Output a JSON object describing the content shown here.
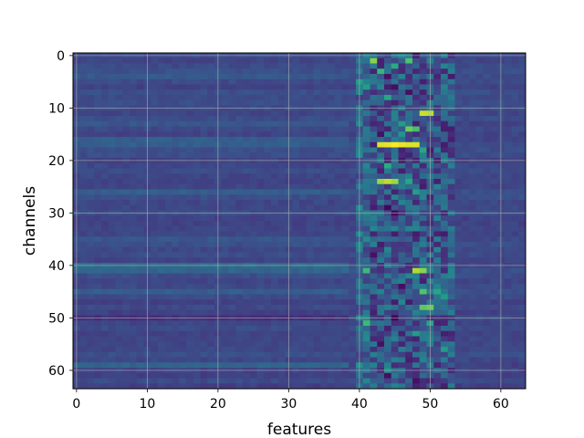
{
  "chart_data": {
    "type": "heatmap",
    "title": "",
    "xlabel": "features",
    "ylabel": "channels",
    "colormap": "viridis",
    "grid": true,
    "y_axis_inverted": true,
    "xlim": [
      -0.5,
      63.5
    ],
    "ylim": [
      63.5,
      -0.5
    ],
    "x_ticks": [
      0,
      10,
      20,
      30,
      40,
      50,
      60
    ],
    "y_ticks": [
      0,
      10,
      20,
      30,
      40,
      50,
      60
    ],
    "shape": {
      "channels": 64,
      "features": 64
    },
    "value_range": [
      0,
      1
    ],
    "background_level": 0.22,
    "active_feature_band": [
      40,
      53
    ],
    "background_bands": [
      {
        "channel": 4,
        "features": [
          0,
          38
        ],
        "value": 0.28
      },
      {
        "channel": 13,
        "features": [
          0,
          38
        ],
        "value": 0.27
      },
      {
        "channel": 16,
        "features": [
          0,
          38
        ],
        "value": 0.3
      },
      {
        "channel": 17,
        "features": [
          0,
          38
        ],
        "value": 0.3
      },
      {
        "channel": 26,
        "features": [
          0,
          38
        ],
        "value": 0.3
      },
      {
        "channel": 35,
        "features": [
          0,
          38
        ],
        "value": 0.27
      },
      {
        "channel": 40,
        "features": [
          0,
          38
        ],
        "value": 0.35
      },
      {
        "channel": 41,
        "features": [
          0,
          38
        ],
        "value": 0.33
      },
      {
        "channel": 45,
        "features": [
          0,
          38
        ],
        "value": 0.3
      },
      {
        "channel": 50,
        "features": [
          0,
          38
        ],
        "value": 0.14
      },
      {
        "channel": 59,
        "features": [
          0,
          38
        ],
        "value": 0.32
      }
    ],
    "hotspots": [
      {
        "channel": 1,
        "feature": 42,
        "value": 0.82
      },
      {
        "channel": 1,
        "feature": 47,
        "value": 0.72
      },
      {
        "channel": 2,
        "feature": 45,
        "value": 0.62
      },
      {
        "channel": 3,
        "feature": 43,
        "value": 0.66
      },
      {
        "channel": 5,
        "feature": 40,
        "value": 0.55
      },
      {
        "channel": 6,
        "feature": 41,
        "value": 0.55
      },
      {
        "channel": 8,
        "feature": 44,
        "value": 0.6
      },
      {
        "channel": 11,
        "feature": 49,
        "value": 0.92
      },
      {
        "channel": 11,
        "feature": 50,
        "value": 0.9
      },
      {
        "channel": 13,
        "feature": 46,
        "value": 0.55
      },
      {
        "channel": 14,
        "feature": 47,
        "value": 0.78
      },
      {
        "channel": 14,
        "feature": 48,
        "value": 0.7
      },
      {
        "channel": 15,
        "feature": 46,
        "value": 0.52
      },
      {
        "channel": 17,
        "feature": 43,
        "value": 0.95
      },
      {
        "channel": 17,
        "feature": 44,
        "value": 0.97
      },
      {
        "channel": 17,
        "feature": 45,
        "value": 1.0
      },
      {
        "channel": 17,
        "feature": 46,
        "value": 0.97
      },
      {
        "channel": 17,
        "feature": 47,
        "value": 0.95
      },
      {
        "channel": 17,
        "feature": 48,
        "value": 0.95
      },
      {
        "channel": 18,
        "feature": 49,
        "value": 0.6
      },
      {
        "channel": 21,
        "feature": 44,
        "value": 0.62
      },
      {
        "channel": 24,
        "feature": 43,
        "value": 0.85
      },
      {
        "channel": 24,
        "feature": 44,
        "value": 0.9
      },
      {
        "channel": 24,
        "feature": 45,
        "value": 0.85
      },
      {
        "channel": 24,
        "feature": 47,
        "value": 0.6
      },
      {
        "channel": 26,
        "feature": 48,
        "value": 0.55
      },
      {
        "channel": 41,
        "feature": 41,
        "value": 0.68
      },
      {
        "channel": 41,
        "feature": 48,
        "value": 0.88
      },
      {
        "channel": 41,
        "feature": 49,
        "value": 0.82
      },
      {
        "channel": 45,
        "feature": 49,
        "value": 0.72
      },
      {
        "channel": 45,
        "feature": 51,
        "value": 0.6
      },
      {
        "channel": 46,
        "feature": 52,
        "value": 0.55
      },
      {
        "channel": 48,
        "feature": 49,
        "value": 0.75
      },
      {
        "channel": 48,
        "feature": 50,
        "value": 0.78
      },
      {
        "channel": 51,
        "feature": 41,
        "value": 0.68
      },
      {
        "channel": 51,
        "feature": 50,
        "value": 0.6
      },
      {
        "channel": 53,
        "feature": 48,
        "value": 0.55
      },
      {
        "channel": 56,
        "feature": 52,
        "value": 0.55
      },
      {
        "channel": 59,
        "feature": 40,
        "value": 0.5
      },
      {
        "channel": 60,
        "feature": 44,
        "value": 0.5
      }
    ],
    "darkspots": [
      {
        "channel": 4,
        "feature": 44,
        "value": 0.05
      },
      {
        "channel": 6,
        "feature": 45,
        "value": 0.04
      },
      {
        "channel": 7,
        "feature": 47,
        "value": 0.05
      },
      {
        "channel": 15,
        "feature": 43,
        "value": 0.05
      },
      {
        "channel": 20,
        "feature": 46,
        "value": 0.06
      },
      {
        "channel": 29,
        "feature": 44,
        "value": 0.02
      },
      {
        "channel": 30,
        "feature": 45,
        "value": 0.03
      },
      {
        "channel": 38,
        "feature": 42,
        "value": 0.05
      },
      {
        "channel": 44,
        "feature": 46,
        "value": 0.04
      },
      {
        "channel": 50,
        "feature": 45,
        "value": 0.0
      },
      {
        "channel": 55,
        "feature": 43,
        "value": 0.05
      },
      {
        "channel": 61,
        "feature": 44,
        "value": 0.04
      },
      {
        "channel": 62,
        "feature": 48,
        "value": 0.05
      }
    ]
  }
}
